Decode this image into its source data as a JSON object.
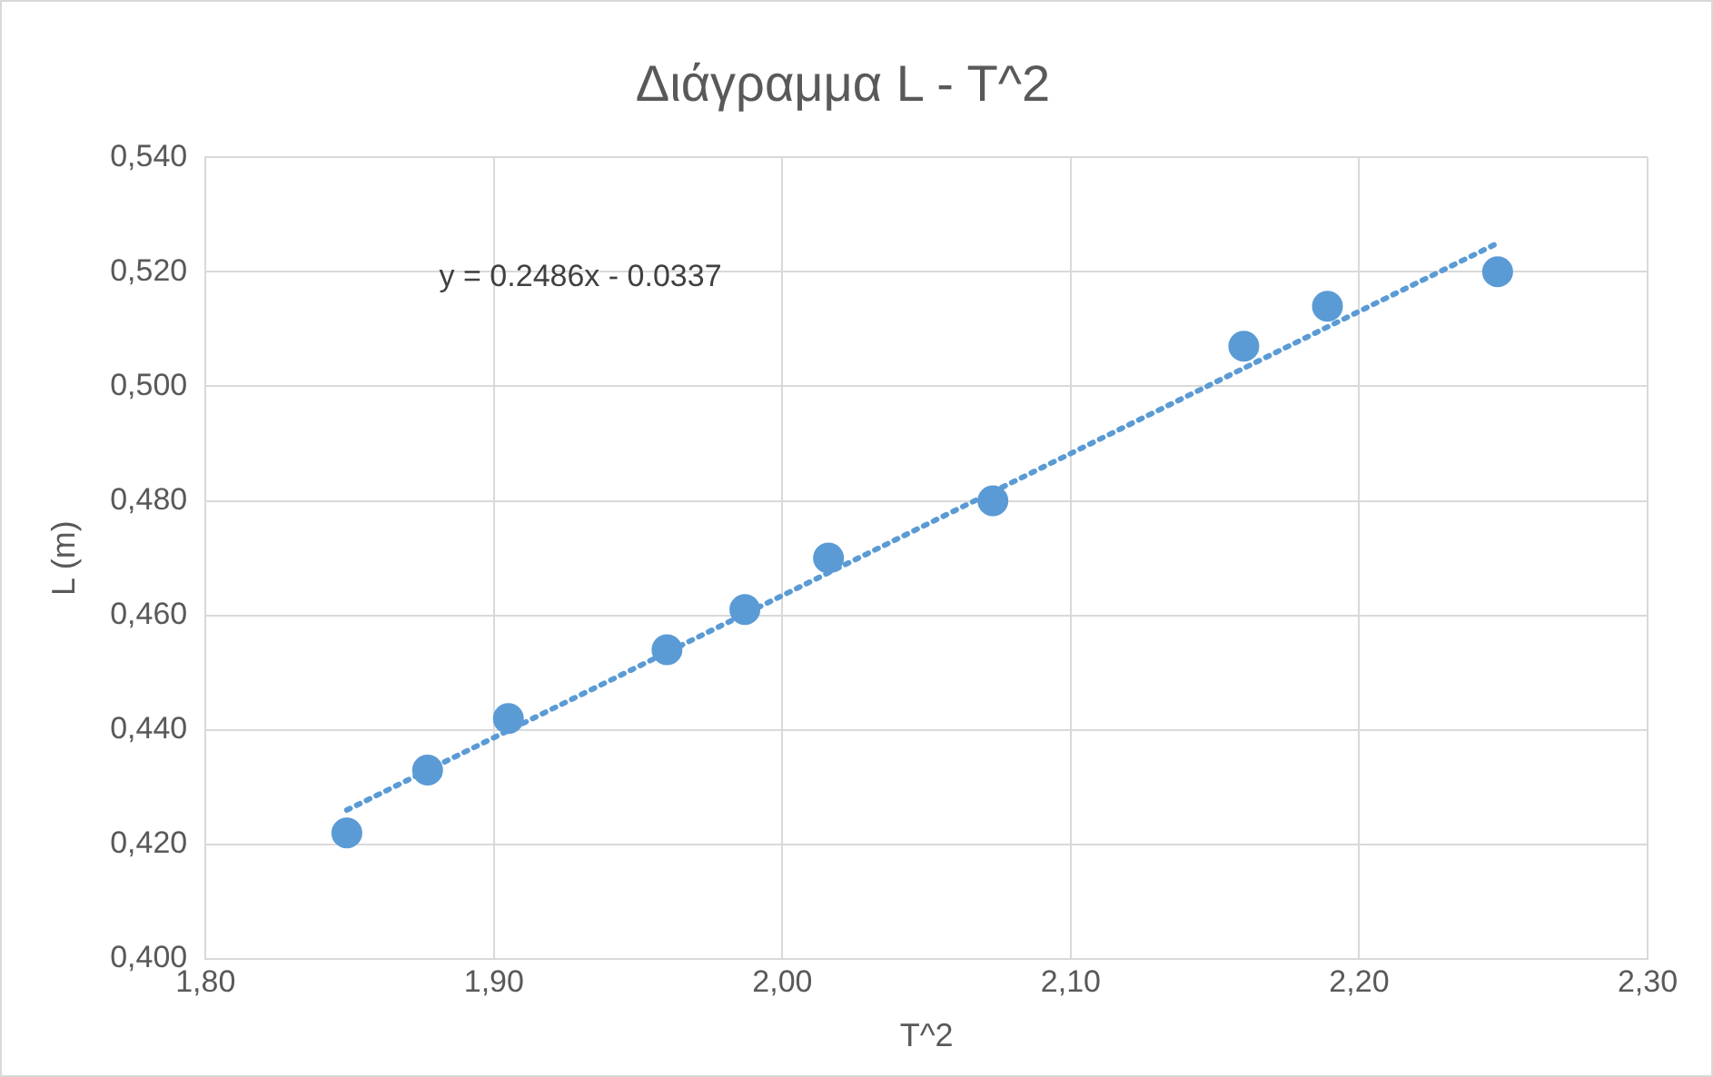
{
  "chart_data": {
    "type": "scatter",
    "title": "Διάγραμμα L - T^2",
    "xlabel": "T^2",
    "ylabel": "L (m)",
    "xlim": [
      1.8,
      2.3
    ],
    "xticks": [
      {
        "value": 1.8,
        "label": "1,80"
      },
      {
        "value": 1.9,
        "label": "1,90"
      },
      {
        "value": 2.0,
        "label": "2,00"
      },
      {
        "value": 2.1,
        "label": "2,10"
      },
      {
        "value": 2.2,
        "label": "2,20"
      },
      {
        "value": 2.3,
        "label": "2,30"
      }
    ],
    "ylim": [
      0.4,
      0.54
    ],
    "yticks": [
      {
        "value": 0.4,
        "label": "0,400"
      },
      {
        "value": 0.42,
        "label": "0,420"
      },
      {
        "value": 0.44,
        "label": "0,440"
      },
      {
        "value": 0.46,
        "label": "0,460"
      },
      {
        "value": 0.48,
        "label": "0,480"
      },
      {
        "value": 0.5,
        "label": "0,500"
      },
      {
        "value": 0.52,
        "label": "0,520"
      },
      {
        "value": 0.54,
        "label": "0,540"
      }
    ],
    "grid": true,
    "legend": false,
    "annotations": [
      "y = 0.2486x - 0.0337"
    ],
    "series": [
      {
        "color": "#5b9bd5",
        "marker": "circle",
        "x": [
          1.849,
          1.877,
          1.905,
          1.96,
          1.987,
          2.016,
          2.073,
          2.16,
          2.189,
          2.248
        ],
        "values": [
          0.422,
          0.433,
          0.442,
          0.454,
          0.461,
          0.47,
          0.48,
          0.507,
          0.514,
          0.52
        ]
      },
      {
        "type": "line",
        "color": "#5b9bd5",
        "marker": "none",
        "line_style": "dotted",
        "x": [
          1.849,
          2.248
        ],
        "values": [
          0.426,
          0.525
        ]
      }
    ]
  }
}
